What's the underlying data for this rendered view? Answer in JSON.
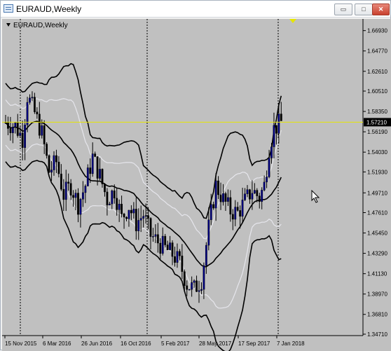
{
  "window": {
    "title": "EURAUD,Weekly"
  },
  "controls": {
    "minimize": "▭",
    "maximize": "□",
    "close": "✕"
  },
  "chart": {
    "symbol_label": "EURAUD,Weekly"
  },
  "colors": {
    "background": "#c0c0c0",
    "bull_candle": "#000080",
    "bear_candle": "#000000",
    "outer_band": "#000000",
    "inner_band": "#e6e6ec",
    "middle_line": "#000000",
    "price_line": "#e6e600",
    "price_tag_bg": "#000000",
    "price_tag_fg": "#ffffff"
  },
  "chart_data": {
    "type": "candlestick",
    "symbol": "EURAUD",
    "timeframe": "Weekly",
    "ylim": [
      1.3456,
      1.6817
    ],
    "y_ticks": [
      "1.66930",
      "1.64770",
      "1.62610",
      "1.60510",
      "1.58350",
      "1.56190",
      "1.54030",
      "1.51930",
      "1.49710",
      "1.47610",
      "1.45450",
      "1.43290",
      "1.41130",
      "1.38970",
      "1.36810",
      "1.34710"
    ],
    "x_ticks": [
      "15 Nov 2015",
      "6 Mar 2016",
      "26 Jun 2016",
      "16 Oct 2016",
      "5 Feb 2017",
      "28 May 2017",
      "17 Sep 2017",
      "7 Jan 2018"
    ],
    "current_price": "1.57210",
    "period_separators": [
      "1 Jan 2016",
      "1 Jan 2017",
      "1 Jan 2018"
    ],
    "indicator": "Bollinger Bands (outer + inner bands, middle line)",
    "grid": false
  }
}
